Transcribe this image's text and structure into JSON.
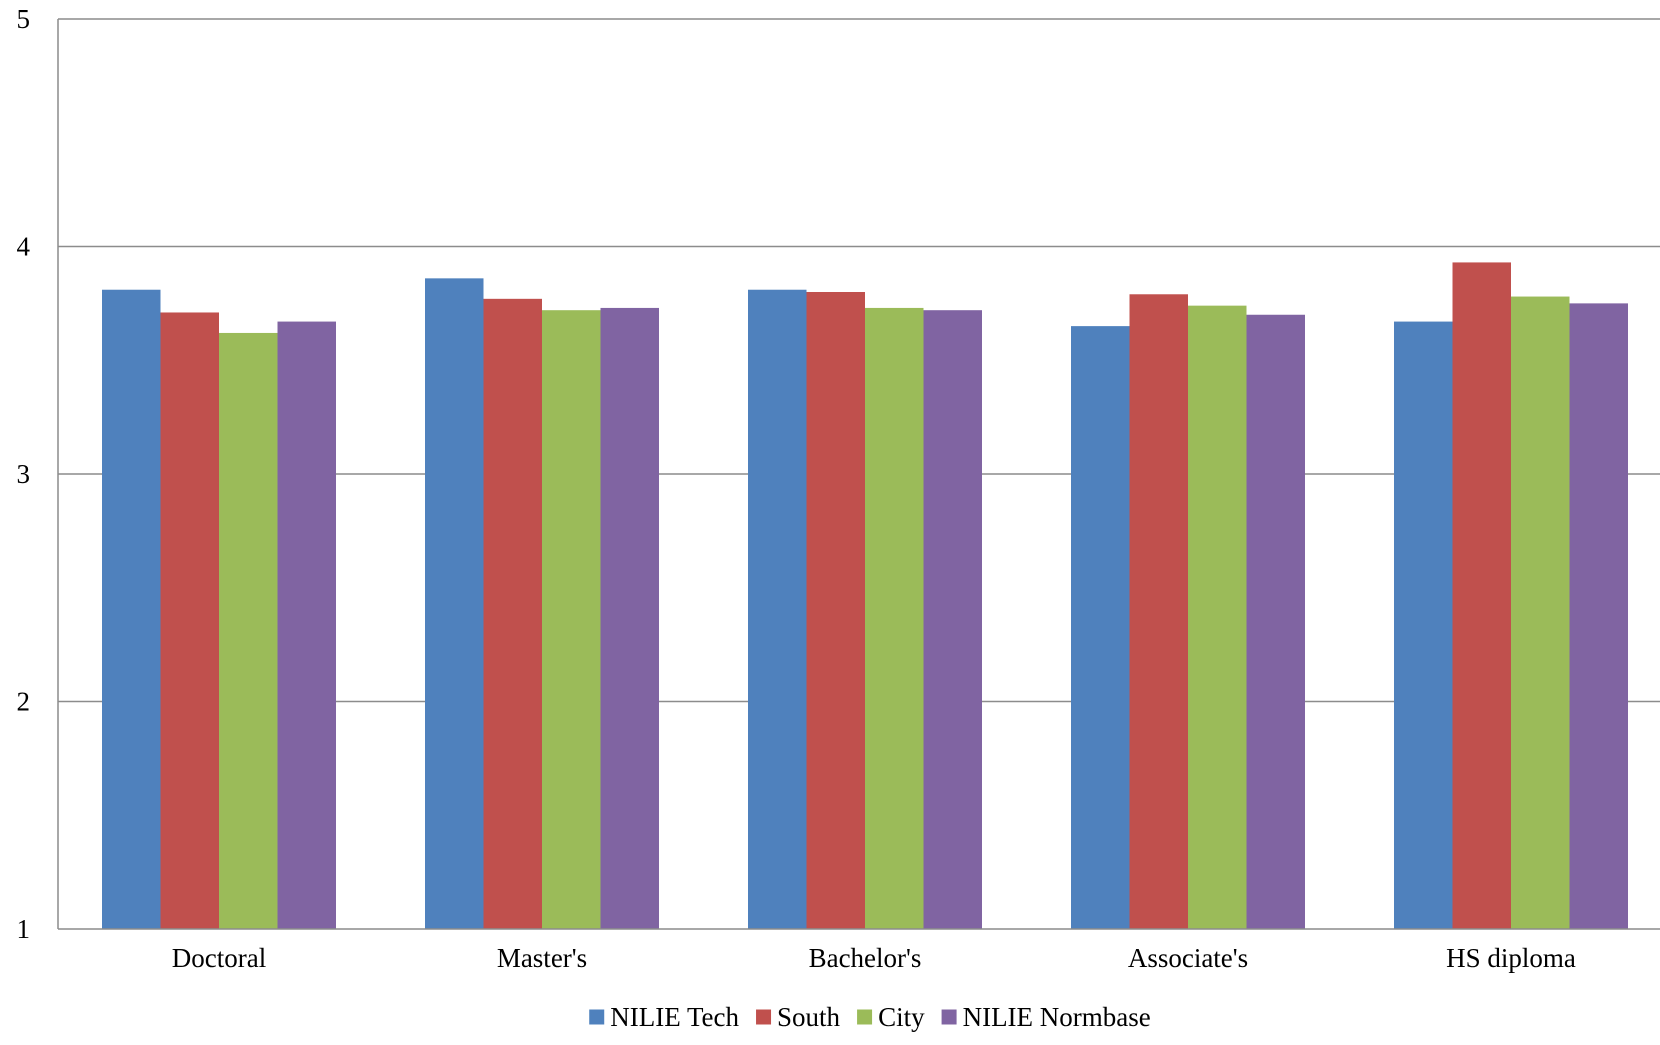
{
  "chart_data": {
    "type": "bar",
    "title": "",
    "xlabel": "",
    "ylabel": "",
    "ylim": [
      1,
      5
    ],
    "yticks": [
      "1",
      "2",
      "3",
      "4",
      "5"
    ],
    "grid": true,
    "legend_position": "bottom",
    "categories": [
      "Doctoral",
      "Master's",
      "Bachelor's",
      "Associate's",
      "HS diploma"
    ],
    "series": [
      {
        "name": "NILIE Tech",
        "color": "#4F81BD",
        "values": [
          3.81,
          3.86,
          3.81,
          3.65,
          3.67
        ]
      },
      {
        "name": "South",
        "color": "#C0504D",
        "values": [
          3.71,
          3.77,
          3.8,
          3.79,
          3.93
        ]
      },
      {
        "name": "City",
        "color": "#9BBB59",
        "values": [
          3.62,
          3.72,
          3.73,
          3.74,
          3.78
        ]
      },
      {
        "name": "NILIE Normbase",
        "color": "#8064A2",
        "values": [
          3.67,
          3.73,
          3.72,
          3.7,
          3.75
        ]
      }
    ]
  }
}
